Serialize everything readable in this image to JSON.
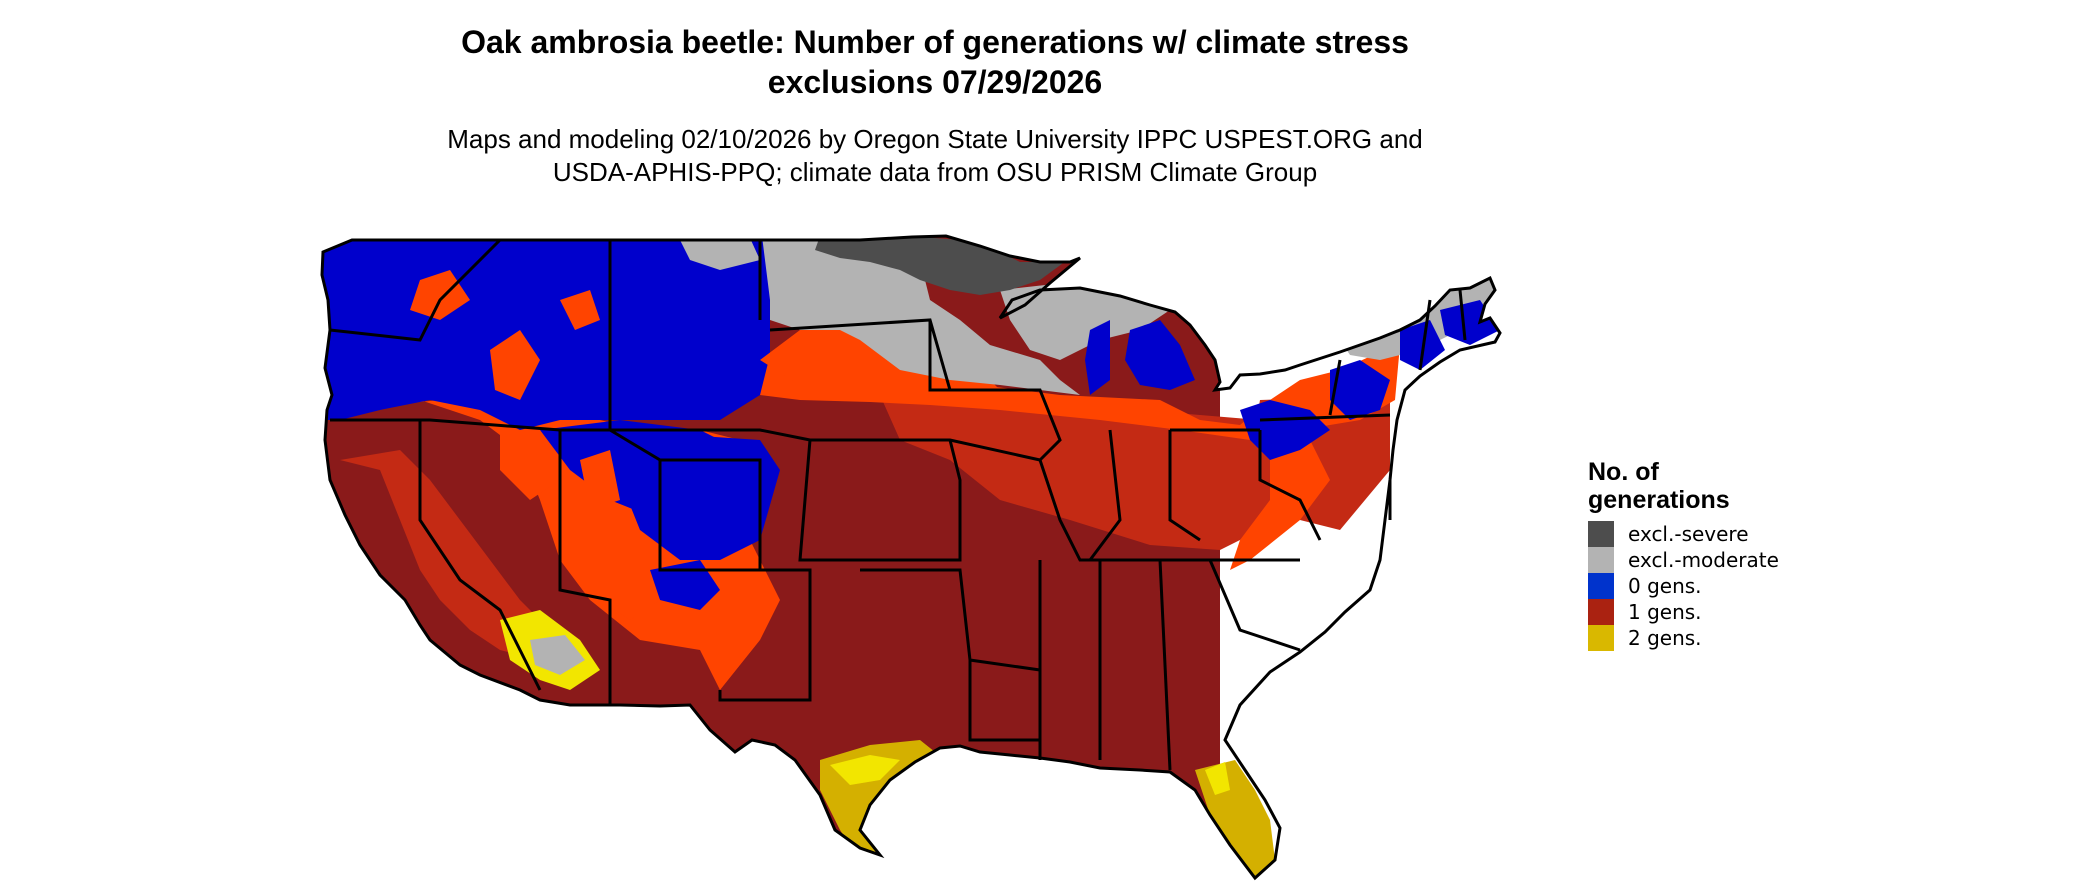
{
  "title_line1": "Oak ambrosia beetle: Number of generations w/ climate stress",
  "title_line2": "exclusions 07/29/2026",
  "subtitle_line1": "Maps and modeling 02/10/2026 by Oregon State University IPPC USPEST.ORG and",
  "subtitle_line2": "USDA-APHIS-PPQ; climate data from OSU PRISM Climate Group",
  "legend": {
    "title_line1": "No. of",
    "title_line2": "generations",
    "items": [
      {
        "label": "excl.-severe",
        "color": "#4d4d4d"
      },
      {
        "label": "excl.-moderate",
        "color": "#b3b3b3"
      },
      {
        "label": "0 gens.",
        "color": "#0033cc"
      },
      {
        "label": "1 gens.",
        "color": "#aa2211"
      },
      {
        "label": "2 gens.",
        "color": "#d9b800"
      }
    ]
  },
  "map_colors": {
    "zero_gens": "#0000cc",
    "one_gen_dark": "#8a1a1a",
    "one_gen_mid": "#c42a14",
    "one_gen_orange": "#ff4400",
    "two_gens": "#d4b000",
    "two_gens_light": "#f2e600",
    "excl_moderate": "#b3b3b3",
    "excl_severe": "#4d4d4d"
  }
}
